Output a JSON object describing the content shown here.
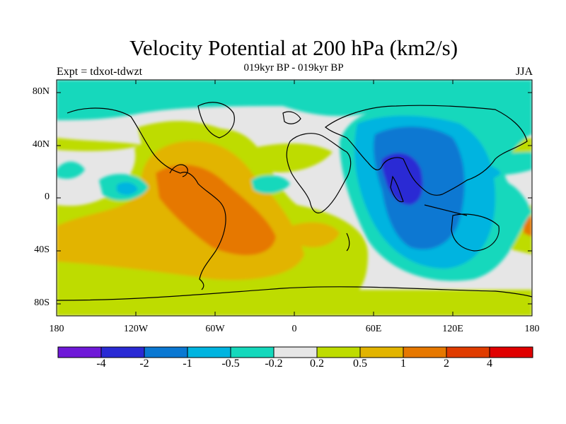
{
  "title": "Velocity Potential at 200 hPa (km2/s)",
  "subtitle": "019kyr BP - 019kyr BP",
  "left_label": "Expt = tdxot-tdwzt",
  "right_label": "JJA",
  "lat_ticks": [
    "80N",
    "40N",
    "0",
    "40S",
    "80S"
  ],
  "lon_ticks": [
    "180",
    "120W",
    "60W",
    "0",
    "60E",
    "120E",
    "180"
  ],
  "colorbar": {
    "labels": [
      "-4",
      "-2",
      "-1",
      "-0.5",
      "-0.2",
      "0.2",
      "0.5",
      "1",
      "2",
      "4"
    ],
    "colors": [
      "#6f19d8",
      "#2a2ad4",
      "#0a78d2",
      "#00b4e0",
      "#14d8bc",
      "#e6e6e6",
      "#bedc00",
      "#e2b400",
      "#e67800",
      "#e03c00",
      "#e00000"
    ]
  }
}
